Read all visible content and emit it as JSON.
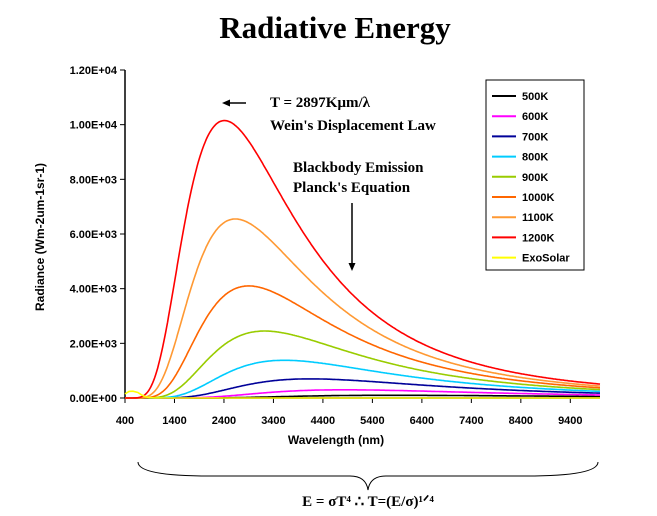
{
  "chart_data": {
    "type": "line",
    "title": "Radiative Energy",
    "xlabel": "Wavelength (nm)",
    "ylabel": "Radiance (Wm-2um-1sr-1)",
    "xlim": [
      400,
      10000
    ],
    "ylim": [
      0,
      12000
    ],
    "x_ticks": [
      "400",
      "1400",
      "2400",
      "3400",
      "4400",
      "5400",
      "6400",
      "7400",
      "8400",
      "9400"
    ],
    "y_ticks": [
      "0.00E+00",
      "2.00E+03",
      "4.00E+03",
      "6.00E+03",
      "8.00E+03",
      "1.00E+04",
      "1.20E+04"
    ],
    "grid": false,
    "legend_position": "top-right",
    "series": [
      {
        "name": "500K",
        "color": "#000000",
        "peak_x": 5800,
        "peak_y": 100
      },
      {
        "name": "600K",
        "color": "#ff00ff",
        "peak_x": 4830,
        "peak_y": 300
      },
      {
        "name": "700K",
        "color": "#000099",
        "peak_x": 4140,
        "peak_y": 700
      },
      {
        "name": "800K",
        "color": "#00ccff",
        "peak_x": 3620,
        "peak_y": 1380
      },
      {
        "name": "900K",
        "color": "#99cc00",
        "peak_x": 3220,
        "peak_y": 2450
      },
      {
        "name": "1000K",
        "color": "#ff6600",
        "peak_x": 2900,
        "peak_y": 4100
      },
      {
        "name": "1100K",
        "color": "#ff9933",
        "peak_x": 2630,
        "peak_y": 6550
      },
      {
        "name": "1200K",
        "color": "#ff0000",
        "peak_x": 2410,
        "peak_y": 10150
      },
      {
        "name": "ExoSolar",
        "color": "#ffff00",
        "peak_x": 500,
        "peak_y": 250
      }
    ],
    "annotations": {
      "wien_formula": "T = 2897Kμm/λ",
      "wien_label": "Wein's Displacement Law",
      "planck_title": "Blackbody Emission",
      "planck_label": "Planck's Equation",
      "stefan_boltzmann": "E = σT⁴ ∴ T=(E/σ)¹ᐟ⁴"
    }
  }
}
